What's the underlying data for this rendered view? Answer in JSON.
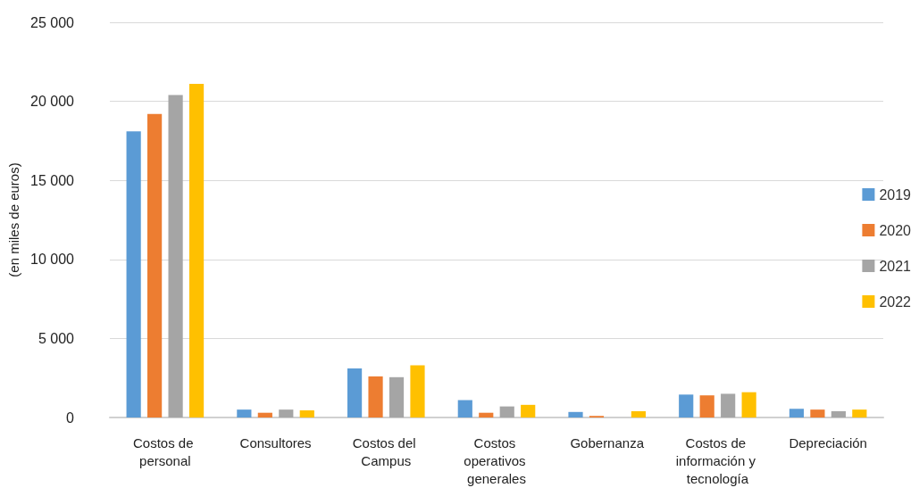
{
  "chart_data": {
    "type": "bar",
    "ylabel": "(en miles de euros)",
    "categories": [
      "Costos de personal",
      "Consultores",
      "Costos del Campus",
      "Costos operativos generales",
      "Gobernanza",
      "Costos de información y tecnología",
      "Depreciación"
    ],
    "series": [
      {
        "name": "2019",
        "color": "#5b9bd5",
        "values": [
          18100,
          500,
          3100,
          1100,
          350,
          1450,
          550
        ]
      },
      {
        "name": "2020",
        "color": "#ed7d31",
        "values": [
          19200,
          300,
          2600,
          300,
          100,
          1400,
          500
        ]
      },
      {
        "name": "2021",
        "color": "#a5a5a5",
        "values": [
          20400,
          500,
          2550,
          700,
          0,
          1500,
          400
        ]
      },
      {
        "name": "2022",
        "color": "#ffc000",
        "values": [
          21100,
          450,
          3300,
          800,
          400,
          1600,
          500
        ]
      }
    ],
    "ylim": [
      0,
      25000
    ],
    "yticks": [
      0,
      5000,
      10000,
      15000,
      20000,
      25000
    ],
    "grid": "y",
    "legend": "right"
  }
}
